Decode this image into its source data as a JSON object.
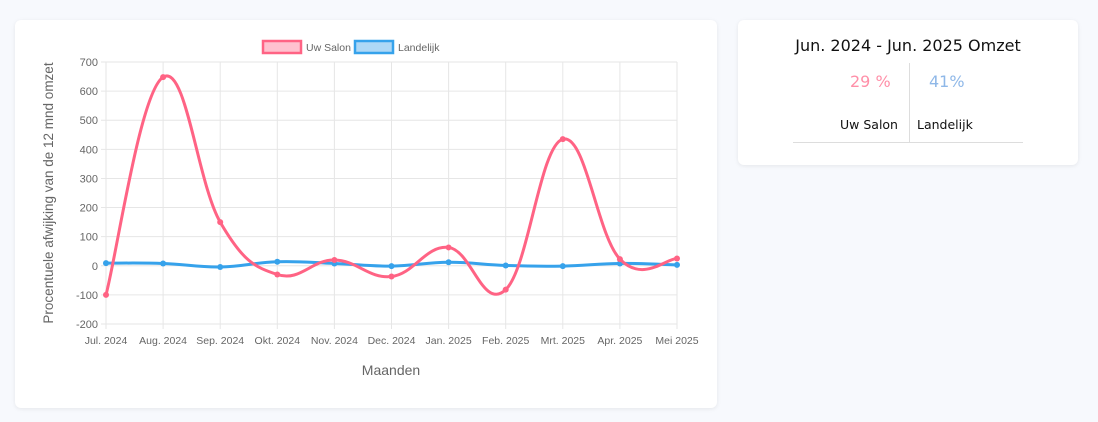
{
  "chart_data": {
    "type": "line",
    "categories": [
      "Jul. 2024",
      "Aug. 2024",
      "Sep. 2024",
      "Okt. 2024",
      "Nov. 2024",
      "Dec. 2024",
      "Jan. 2025",
      "Feb. 2025",
      "Mrt. 2025",
      "Apr. 2025",
      "Mei 2025"
    ],
    "series": [
      {
        "name": "Uw Salon",
        "color": "#ff6384",
        "fill": "#ffc1cf",
        "values": [
          -100,
          648,
          150,
          -30,
          20,
          -37,
          63,
          -82,
          435,
          23,
          25
        ]
      },
      {
        "name": "Landelijk",
        "color": "#36a2eb",
        "fill": "#aed8f6",
        "values": [
          9,
          8,
          -4,
          14,
          8,
          -1,
          12,
          1,
          -1,
          8,
          3
        ]
      }
    ],
    "xlabel": "Maanden",
    "ylabel": "Procentuele afwijking van de 12 mnd omzet",
    "ylim": [
      -200,
      700
    ],
    "yticks": [
      -200,
      -100,
      0,
      100,
      200,
      300,
      400,
      500,
      600,
      700
    ],
    "grid": true,
    "legend": "top"
  },
  "summary": {
    "title": "Jun. 2024 - Jun. 2025 Omzet",
    "salon_value": "29 %",
    "national_value": "41%",
    "salon_label": "Uw Salon",
    "national_label": "Landelijk",
    "salon_color": "#ff8fa8",
    "national_color": "#8fb8e8"
  }
}
